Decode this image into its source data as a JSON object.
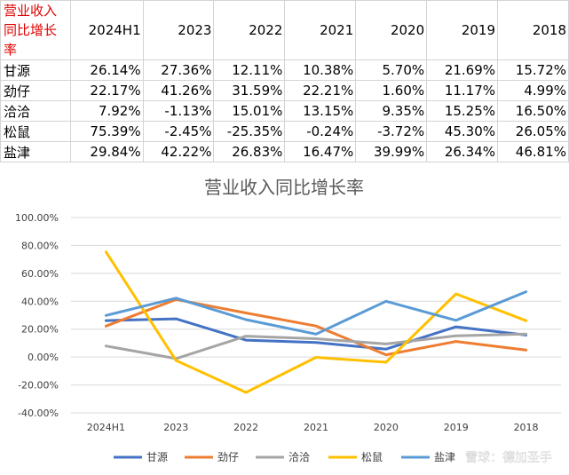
{
  "table": {
    "corner_label": "营业收入同比增长率",
    "columns": [
      "2024H1",
      "2023",
      "2022",
      "2021",
      "2020",
      "2019",
      "2018"
    ],
    "rows": [
      {
        "name": "甘源",
        "cells": [
          "26.14%",
          "27.36%",
          "12.11%",
          "10.38%",
          "5.70%",
          "21.69%",
          "15.72%"
        ]
      },
      {
        "name": "劲仔",
        "cells": [
          "22.17%",
          "41.26%",
          "31.59%",
          "22.21%",
          "1.60%",
          "11.17%",
          "4.99%"
        ]
      },
      {
        "name": "洽洽",
        "cells": [
          "7.92%",
          "-1.13%",
          "15.01%",
          "13.15%",
          "9.35%",
          "15.25%",
          "16.50%"
        ]
      },
      {
        "name": "松鼠",
        "cells": [
          "75.39%",
          "-2.45%",
          "-25.35%",
          "-0.24%",
          "-3.72%",
          "45.30%",
          "26.05%"
        ]
      },
      {
        "name": "盐津",
        "cells": [
          "29.84%",
          "42.22%",
          "26.83%",
          "16.47%",
          "39.99%",
          "26.34%",
          "46.81%"
        ]
      }
    ]
  },
  "chart_data": {
    "type": "line",
    "title": "营业收入同比增长率",
    "categories": [
      "2024H1",
      "2023",
      "2022",
      "2021",
      "2020",
      "2019",
      "2018"
    ],
    "ylim": [
      -40,
      100
    ],
    "ytick_step": 20,
    "ytick_labels": [
      "100.00%",
      "80.00%",
      "60.00%",
      "40.00%",
      "20.00%",
      "0.00%",
      "-20.00%",
      "-40.00%"
    ],
    "grid": true,
    "legend_position": "bottom",
    "series": [
      {
        "name": "甘源",
        "color": "#4472c4",
        "values": [
          26.14,
          27.36,
          12.11,
          10.38,
          5.7,
          21.69,
          15.72
        ]
      },
      {
        "name": "劲仔",
        "color": "#ed7d31",
        "values": [
          22.17,
          41.26,
          31.59,
          22.21,
          1.6,
          11.17,
          4.99
        ]
      },
      {
        "name": "洽洽",
        "color": "#a5a5a5",
        "values": [
          7.92,
          -1.13,
          15.01,
          13.15,
          9.35,
          15.25,
          16.5
        ]
      },
      {
        "name": "松鼠",
        "color": "#ffc000",
        "values": [
          75.39,
          -2.45,
          -25.35,
          -0.24,
          -3.72,
          45.3,
          26.05
        ]
      },
      {
        "name": "盐津",
        "color": "#5b9bd5",
        "values": [
          29.84,
          42.22,
          26.83,
          16.47,
          39.99,
          26.34,
          46.81
        ]
      }
    ]
  },
  "watermark": "雪球：德加圣手"
}
